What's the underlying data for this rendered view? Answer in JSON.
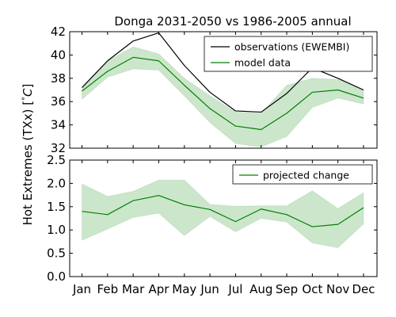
{
  "chart_data": {
    "type": "line",
    "title": "Donga 2031-2050 vs 1986-2005 annual",
    "ylabel": "Hot Extremes (TXx) [$^\\circ C$]",
    "ylabel_display": "Hot Extremes (TXx) [",
    "ylabel_degree": "°",
    "ylabel_unit": "C",
    "ylabel_close": "]",
    "categories": [
      "Jan",
      "Feb",
      "Mar",
      "Apr",
      "May",
      "Jun",
      "Jul",
      "Aug",
      "Sep",
      "Oct",
      "Nov",
      "Dec"
    ],
    "colors": {
      "observations": "#000000",
      "model": "#008000",
      "band_fill": "#008000",
      "band_opacity": 0.2
    },
    "panels": [
      {
        "id": "top",
        "ylim": [
          32,
          42
        ],
        "yticks": [
          "32",
          "34",
          "36",
          "38",
          "40",
          "42"
        ],
        "ytick_values": [
          32,
          34,
          36,
          38,
          40,
          42
        ],
        "legend_position": "top-right",
        "band": {
          "lower": [
            36.2,
            38.1,
            38.8,
            38.7,
            36.5,
            34.2,
            32.4,
            32.1,
            33.0,
            35.5,
            36.3,
            35.8
          ],
          "upper": [
            37.1,
            39.5,
            40.7,
            40.1,
            38.0,
            36.5,
            35.1,
            35.0,
            37.4,
            38.0,
            37.9,
            37.0
          ]
        },
        "series": [
          {
            "name": "observations (EWEMBI)",
            "color": "#000000",
            "values": [
              37.2,
              39.5,
              41.2,
              41.9,
              39.1,
              36.8,
              35.2,
              35.1,
              36.7,
              38.9,
              38.0,
              37.0
            ]
          },
          {
            "name": "model data",
            "color": "#008000",
            "values": [
              36.9,
              38.6,
              39.8,
              39.5,
              37.4,
              35.4,
              33.9,
              33.6,
              35.0,
              36.8,
              37.0,
              36.3
            ]
          }
        ]
      },
      {
        "id": "bottom",
        "ylim": [
          0.0,
          2.5
        ],
        "yticks": [
          "0.0",
          "0.5",
          "1.0",
          "1.5",
          "2.0",
          "2.5"
        ],
        "ytick_values": [
          0.0,
          0.5,
          1.0,
          1.5,
          2.0,
          2.5
        ],
        "legend_position": "top-right",
        "band": {
          "lower": [
            0.78,
            1.02,
            1.27,
            1.36,
            0.88,
            1.29,
            0.96,
            1.25,
            1.17,
            0.72,
            0.62,
            1.13
          ],
          "upper": [
            1.99,
            1.72,
            1.83,
            2.07,
            2.07,
            1.55,
            1.51,
            1.52,
            1.52,
            1.84,
            1.46,
            1.8
          ]
        },
        "series": [
          {
            "name": "projected change",
            "color": "#008000",
            "values": [
              1.4,
              1.33,
              1.63,
              1.74,
              1.54,
              1.44,
              1.18,
              1.45,
              1.33,
              1.07,
              1.12,
              1.48
            ]
          }
        ]
      }
    ]
  }
}
